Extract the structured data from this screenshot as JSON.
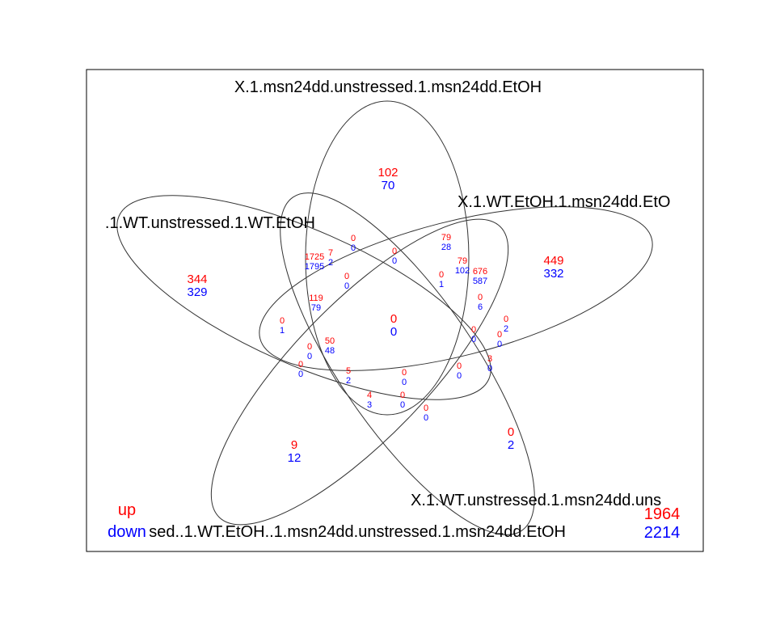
{
  "colors": {
    "up": "#ff0000",
    "down": "#0000ff",
    "outline": "#000000"
  },
  "sets": [
    {
      "id": "top",
      "label": "X.1.msn24dd.unstressed.1.msn24dd.EtOH"
    },
    {
      "id": "right",
      "label": "X.1.WT.EtOH.1.msn24dd.EtO"
    },
    {
      "id": "left",
      "label": ".1.WT.unstressed.1.WT.EtOH"
    },
    {
      "id": "bottom-right",
      "label": "X.1.WT.unstressed.1.msn24dd.uns"
    },
    {
      "id": "bottom-left",
      "label": "sed..1.WT.EtOH..1.msn24dd.unstressed.1.msn24dd.EtOH"
    }
  ],
  "legend": {
    "up_label": "up",
    "down_label": "down"
  },
  "totals": {
    "up": "1964",
    "down": "2214"
  },
  "regions": [
    {
      "id": "r01",
      "up": "102",
      "down": "70"
    },
    {
      "id": "r02",
      "up": "449",
      "down": "332"
    },
    {
      "id": "r03",
      "up": "344",
      "down": "329"
    },
    {
      "id": "r04",
      "up": "9",
      "down": "12"
    },
    {
      "id": "r05",
      "up": "0",
      "down": "2"
    },
    {
      "id": "r06",
      "up": "0",
      "down": "0"
    },
    {
      "id": "r07",
      "up": "0",
      "down": "0"
    },
    {
      "id": "r08",
      "up": "0",
      "down": "0"
    },
    {
      "id": "r09",
      "up": "79",
      "down": "28"
    },
    {
      "id": "r10",
      "up": "1725",
      "down": "1795"
    },
    {
      "id": "r11",
      "up": "7",
      "down": "2"
    },
    {
      "id": "r12",
      "up": "0",
      "down": "0"
    },
    {
      "id": "r13",
      "up": "0",
      "down": "1"
    },
    {
      "id": "r14",
      "up": "79",
      "down": "102"
    },
    {
      "id": "r15",
      "up": "676",
      "down": "587"
    },
    {
      "id": "r16",
      "up": "119",
      "down": "79"
    },
    {
      "id": "r17",
      "up": "0",
      "down": "6"
    },
    {
      "id": "r18",
      "up": "0",
      "down": "1"
    },
    {
      "id": "r19",
      "up": "0",
      "down": "2"
    },
    {
      "id": "r20",
      "up": "0",
      "down": "0"
    },
    {
      "id": "r21",
      "up": "0",
      "down": "0"
    },
    {
      "id": "r22",
      "up": "50",
      "down": "48"
    },
    {
      "id": "r23",
      "up": "0",
      "down": "0"
    },
    {
      "id": "r24",
      "up": "0",
      "down": "0"
    },
    {
      "id": "r25",
      "up": "3",
      "down": "0"
    },
    {
      "id": "r26",
      "up": "5",
      "down": "2"
    },
    {
      "id": "r27",
      "up": "0",
      "down": "0"
    },
    {
      "id": "r28",
      "up": "0",
      "down": "0"
    },
    {
      "id": "r29",
      "up": "4",
      "down": "3"
    },
    {
      "id": "r30",
      "up": "0",
      "down": "0"
    },
    {
      "id": "r31",
      "up": "0",
      "down": "0"
    }
  ]
}
